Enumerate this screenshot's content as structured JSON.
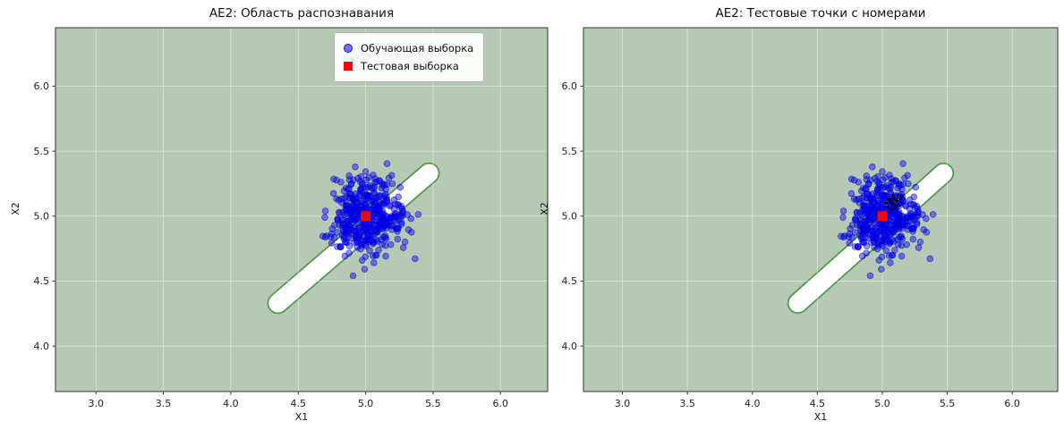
{
  "figure": {
    "background": "#ffffff",
    "font_color": "#111111"
  },
  "chart_data": [
    {
      "type": "scatter",
      "title": "AE2: Область распознавания",
      "xlabel": "X1",
      "ylabel": "X2",
      "xlim": [
        2.7,
        6.35
      ],
      "ylim": [
        3.65,
        6.45
      ],
      "xticks": [
        3.0,
        3.5,
        4.0,
        4.5,
        5.0,
        5.5,
        6.0
      ],
      "xtick_labels": [
        "3.0",
        "3.5",
        "4.0",
        "4.5",
        "5.0",
        "5.5",
        "6.0"
      ],
      "yticks": [
        4.0,
        4.5,
        5.0,
        5.5,
        6.0
      ],
      "ytick_labels": [
        "4.0",
        "4.5",
        "5.0",
        "5.5",
        "6.0"
      ],
      "grid": true,
      "grid_color": "rgba(255,255,255,0.55)",
      "region_fill": "#b5c9b5",
      "recognition_band": {
        "shape": "capsule",
        "x1": 4.35,
        "y1": 4.33,
        "x2": 5.47,
        "y2": 5.33,
        "half_width": 0.07,
        "fill": "#ffffff",
        "edge_color": "#4c9a4c"
      },
      "series": [
        {
          "name": "Обучающая выборка",
          "marker": "circle",
          "color": "#0000ff",
          "edge_color": "#0000b4",
          "alpha": 0.45,
          "cluster": {
            "center": [
              5.0,
              5.0
            ],
            "std": [
              0.14,
              0.14
            ],
            "n": 450,
            "seed": 42
          }
        },
        {
          "name": "Тестовая выборка",
          "marker": "square",
          "color": "#ff0000",
          "points": [
            [
              5.0,
              5.0
            ]
          ]
        }
      ],
      "legend": {
        "visible": true,
        "position": "upper right"
      }
    },
    {
      "type": "scatter",
      "title": "AE2: Тестовые точки с номерами",
      "xlabel": "X1",
      "ylabel": "X2",
      "xlim": [
        2.7,
        6.35
      ],
      "ylim": [
        3.65,
        6.45
      ],
      "xticks": [
        3.0,
        3.5,
        4.0,
        4.5,
        5.0,
        5.5,
        6.0
      ],
      "xtick_labels": [
        "3.0",
        "3.5",
        "4.0",
        "4.5",
        "5.0",
        "5.5",
        "6.0"
      ],
      "yticks": [
        4.0,
        4.5,
        5.0,
        5.5,
        6.0
      ],
      "ytick_labels": [
        "4.0",
        "4.5",
        "5.0",
        "5.5",
        "6.0"
      ],
      "grid": true,
      "grid_color": "rgba(255,255,255,0.55)",
      "region_fill": "#b5c9b5",
      "recognition_band": {
        "shape": "capsule",
        "x1": 4.35,
        "y1": 4.33,
        "x2": 5.47,
        "y2": 5.33,
        "half_width": 0.07,
        "fill": "#ffffff",
        "edge_color": "#4c9a4c"
      },
      "series": [
        {
          "name": "Обучающая выборка",
          "marker": "circle",
          "color": "#0000ff",
          "edge_color": "#0000b4",
          "alpha": 0.45,
          "cluster": {
            "center": [
              5.0,
              5.0
            ],
            "std": [
              0.14,
              0.14
            ],
            "n": 450,
            "seed": 42
          }
        },
        {
          "name": "Тестовая выборка",
          "marker": "square",
          "color": "#ff0000",
          "points": [
            [
              5.0,
              5.0
            ]
          ]
        }
      ],
      "legend": {
        "visible": false
      },
      "annotations": [
        {
          "label": "1",
          "x": 5.04,
          "y": 5.07
        },
        {
          "label": "2",
          "x": 5.08,
          "y": 5.1
        },
        {
          "label": "3",
          "x": 5.11,
          "y": 5.12
        },
        {
          "label": "4",
          "x": 5.06,
          "y": 5.12
        },
        {
          "label": "5",
          "x": 5.1,
          "y": 5.06
        },
        {
          "label": "6",
          "x": 5.03,
          "y": 5.1
        },
        {
          "label": "7",
          "x": 5.12,
          "y": 5.09
        },
        {
          "label": "8",
          "x": 5.07,
          "y": 5.05
        },
        {
          "label": "9",
          "x": 5.05,
          "y": 5.13
        },
        {
          "label": "10",
          "x": 5.09,
          "y": 5.13
        }
      ]
    }
  ]
}
